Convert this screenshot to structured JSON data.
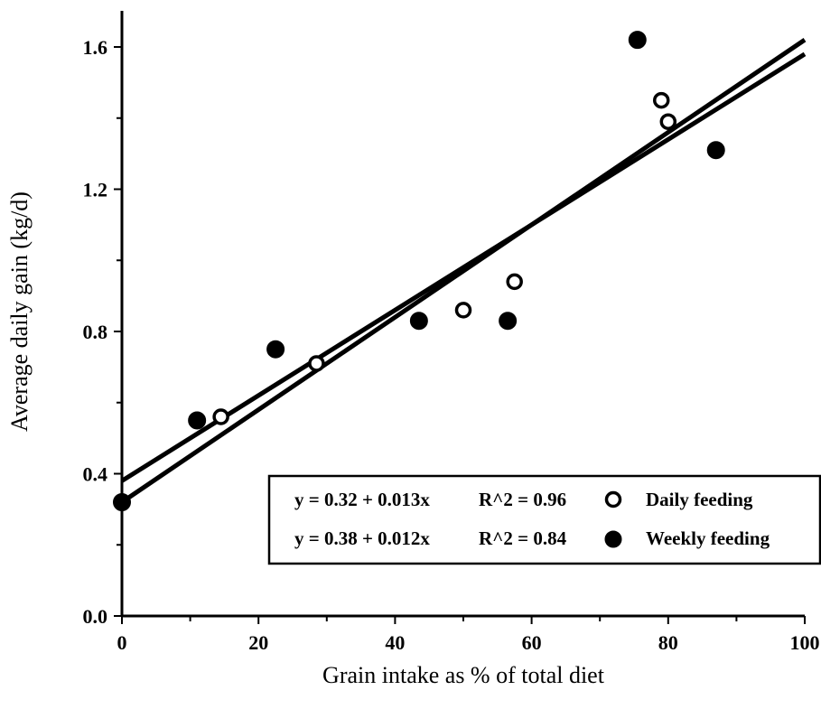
{
  "chart_data": {
    "type": "scatter",
    "title": "",
    "xlabel": "Grain intake as % of total diet",
    "ylabel": "Average daily gain (kg/d)",
    "xlim": [
      0,
      100
    ],
    "ylim": [
      0,
      1.6
    ],
    "x_ticks": [
      0,
      20,
      40,
      60,
      80,
      100
    ],
    "x_tick_labels": [
      "0",
      "20",
      "40",
      "60",
      "80",
      "100"
    ],
    "y_ticks": [
      0,
      0.4,
      0.8,
      1.2,
      1.6
    ],
    "y_tick_labels": [
      "0.0",
      "0.4",
      "0.8",
      "1.2",
      "1.6"
    ],
    "grid": false,
    "legend_position": "bottom-right",
    "series": [
      {
        "name": "Daily feeding",
        "marker": "open-circle",
        "equation": "y = 0.32 + 0.013x",
        "r2": "R^2 = 0.96",
        "intercept": 0.32,
        "slope": 0.013,
        "points": [
          {
            "x": 14.5,
            "y": 0.56
          },
          {
            "x": 28.5,
            "y": 0.71
          },
          {
            "x": 50,
            "y": 0.86
          },
          {
            "x": 57.5,
            "y": 0.94
          },
          {
            "x": 79,
            "y": 1.45
          },
          {
            "x": 80,
            "y": 1.39
          }
        ]
      },
      {
        "name": "Weekly feeding",
        "marker": "filled-circle",
        "equation": "y = 0.38 + 0.012x",
        "r2": "R^2 = 0.84",
        "intercept": 0.38,
        "slope": 0.012,
        "points": [
          {
            "x": 0,
            "y": 0.32
          },
          {
            "x": 11,
            "y": 0.55
          },
          {
            "x": 22.5,
            "y": 0.75
          },
          {
            "x": 43.5,
            "y": 0.83
          },
          {
            "x": 56.5,
            "y": 0.83
          },
          {
            "x": 75.5,
            "y": 1.62
          },
          {
            "x": 87,
            "y": 1.31
          }
        ]
      }
    ]
  }
}
